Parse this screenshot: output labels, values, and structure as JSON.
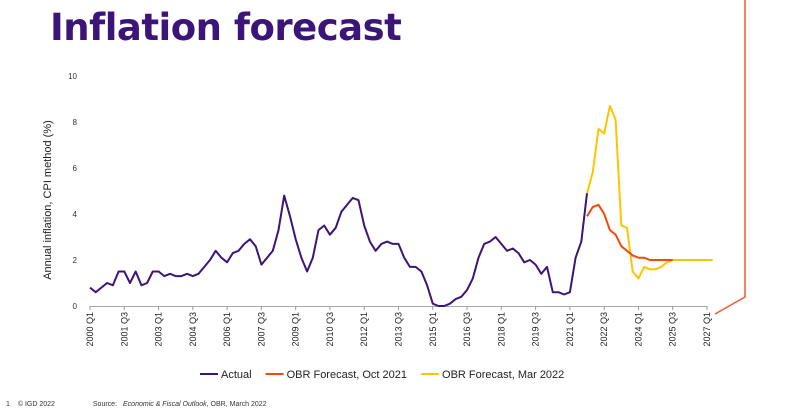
{
  "title": "Inflation forecast",
  "footer": {
    "page_number": "1",
    "copyright": "© IGD 2022",
    "source_label": "Source:",
    "source_title": "Economic & Fiscal Outlook",
    "source_rest": ", OBR, March 2022"
  },
  "colors": {
    "actual": "#3c1578",
    "obr_oct_2021": "#f04a0e",
    "obr_mar_2022": "#ffc400",
    "accent_line": "#f05a28"
  },
  "chart_data": {
    "type": "line",
    "ylabel": "Annual inflation, CPI method (%)",
    "xlabel": "",
    "ylim": [
      0,
      10
    ],
    "yticks": [
      0,
      2,
      4,
      6,
      8,
      10
    ],
    "x_domain": [
      "2000 Q1",
      "2027 Q1"
    ],
    "xtick_labels": [
      "2000 Q1",
      "2001 Q3",
      "2003 Q1",
      "2004 Q3",
      "2006 Q1",
      "2007 Q3",
      "2009 Q1",
      "2010 Q3",
      "2012 Q1",
      "2013 Q3",
      "2015 Q1",
      "2016 Q3",
      "2018 Q1",
      "2019 Q3",
      "2021 Q1",
      "2022 Q3",
      "2024 Q1",
      "2025 Q3",
      "2027 Q1"
    ],
    "grid": false,
    "legend_position": "bottom",
    "series": [
      {
        "name": "Actual",
        "start": "2000 Q1",
        "values": [
          0.8,
          0.6,
          0.8,
          1.0,
          0.9,
          1.5,
          1.5,
          1.0,
          1.5,
          0.9,
          1.0,
          1.5,
          1.5,
          1.3,
          1.4,
          1.3,
          1.3,
          1.4,
          1.3,
          1.4,
          1.7,
          2.0,
          2.4,
          2.1,
          1.9,
          2.3,
          2.4,
          2.7,
          2.9,
          2.6,
          1.8,
          2.1,
          2.4,
          3.3,
          4.8,
          3.9,
          2.9,
          2.1,
          1.5,
          2.1,
          3.3,
          3.5,
          3.1,
          3.4,
          4.1,
          4.4,
          4.7,
          4.6,
          3.5,
          2.8,
          2.4,
          2.7,
          2.8,
          2.7,
          2.7,
          2.1,
          1.7,
          1.7,
          1.5,
          0.9,
          0.1,
          0.0,
          0.0,
          0.1,
          0.3,
          0.4,
          0.7,
          1.2,
          2.1,
          2.7,
          2.8,
          3.0,
          2.7,
          2.4,
          2.5,
          2.3,
          1.9,
          2.0,
          1.8,
          1.4,
          1.7,
          0.6,
          0.6,
          0.5,
          0.6,
          2.1,
          2.8,
          4.9
        ]
      },
      {
        "name": "OBR Forecast, Oct 2021",
        "start": "2021 Q4",
        "values": [
          3.9,
          4.3,
          4.4,
          4.0,
          3.3,
          3.1,
          2.6,
          2.4,
          2.2,
          2.1,
          2.1,
          2.0,
          2.0,
          2.0,
          2.0,
          2.0
        ]
      },
      {
        "name": "OBR Forecast, Mar 2022",
        "start": "2021 Q4",
        "values": [
          4.9,
          5.8,
          7.7,
          7.5,
          8.7,
          8.1,
          3.5,
          3.4,
          1.5,
          1.2,
          1.7,
          1.6,
          1.6,
          1.7,
          1.9,
          2.0,
          2.0,
          2.0,
          2.0,
          2.0,
          2.0,
          2.0,
          2.0
        ]
      }
    ]
  }
}
